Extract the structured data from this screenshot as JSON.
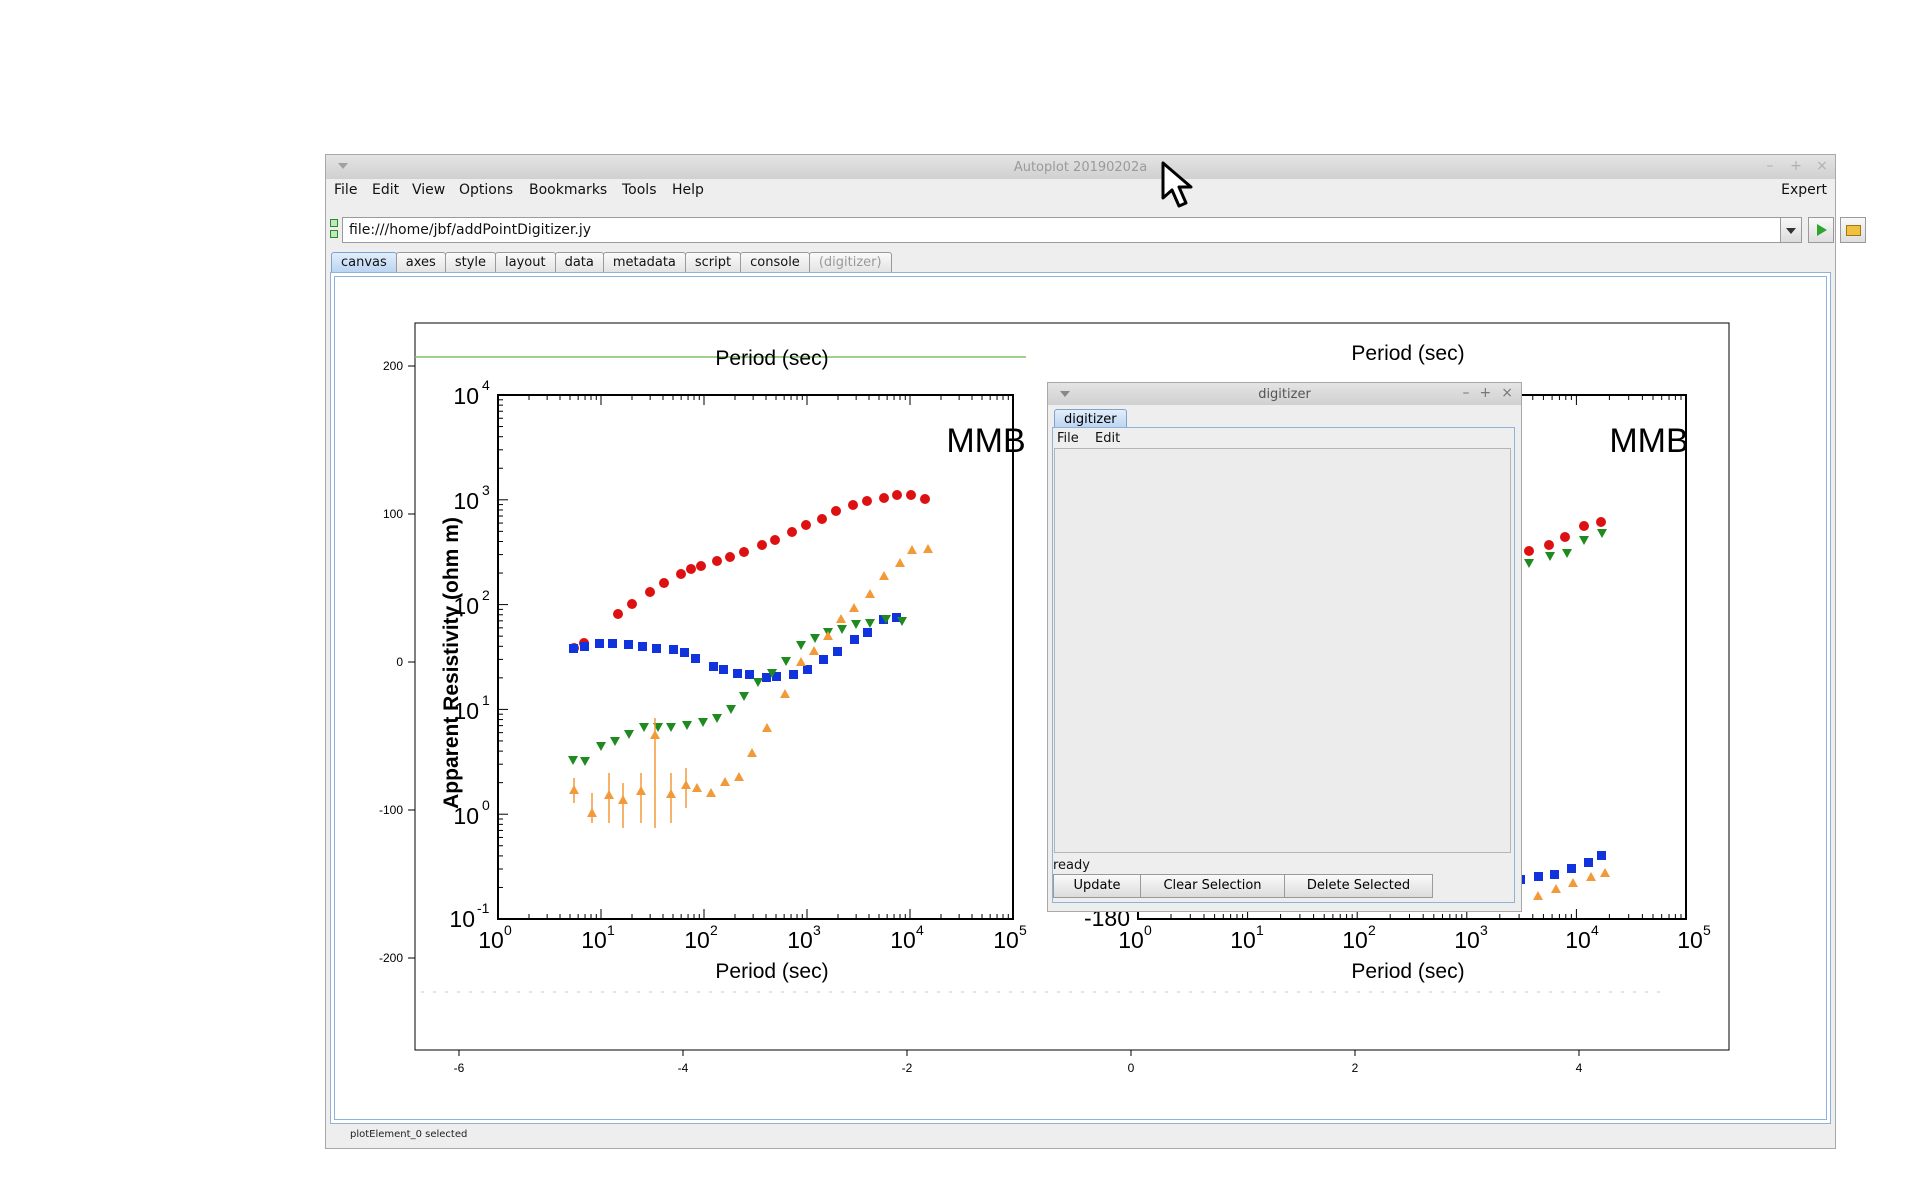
{
  "window": {
    "title": "Autoplot 20190202a",
    "controls": [
      "–",
      "+",
      "×"
    ]
  },
  "menubar": {
    "items": [
      "File",
      "Edit",
      "View",
      "Options",
      "Bookmarks",
      "Tools",
      "Help"
    ],
    "right": "Expert"
  },
  "address": {
    "url": "file:///home/jbf/addPointDigitizer.jy",
    "run_icon": "play-icon",
    "open_icon": "folder-icon"
  },
  "tabs": [
    {
      "label": "canvas",
      "active": true
    },
    {
      "label": "axes"
    },
    {
      "label": "style"
    },
    {
      "label": "layout"
    },
    {
      "label": "data"
    },
    {
      "label": "metadata"
    },
    {
      "label": "script"
    },
    {
      "label": "console"
    },
    {
      "label": "(digitizer)",
      "disabled": true
    }
  ],
  "status": "plotElement_0 selected",
  "plot": {
    "y_ticks": [
      "200",
      "100",
      "0",
      "-100",
      "-200"
    ],
    "x_ticks": [
      "-6",
      "-4",
      "-2",
      "0",
      "2",
      "4"
    ]
  },
  "embedded_image": {
    "ylabel": "Apparent Resistivity (ohm m)",
    "xlabel": "Period (sec)",
    "top_label_left": "Period (sec)",
    "top_label_right": "Period (sec)",
    "station_left": "MMB",
    "station_right": "MMB",
    "y_ticks": [
      "10",
      "10",
      "10",
      "10",
      "10",
      "10"
    ],
    "y_exps": [
      "4",
      "3",
      "2",
      "1",
      "0",
      "-1"
    ],
    "x_ticks": [
      "10",
      "10",
      "10",
      "10",
      "10",
      "10"
    ],
    "x_exps": [
      "0",
      "1",
      "2",
      "3",
      "4",
      "5"
    ],
    "right_extra_tick": "-180",
    "colors": {
      "te": "#dd1111",
      "tm": "#1133dd",
      "orange": "#f29a3a",
      "green": "#1f8a1f"
    }
  },
  "digitizer": {
    "title": "digitizer",
    "controls": [
      "–",
      "+",
      "×"
    ],
    "tab": "digitizer",
    "menu": [
      "File",
      "Edit"
    ],
    "status": "ready",
    "buttons": [
      "Update",
      "Clear Selection",
      "Delete Selected"
    ]
  }
}
